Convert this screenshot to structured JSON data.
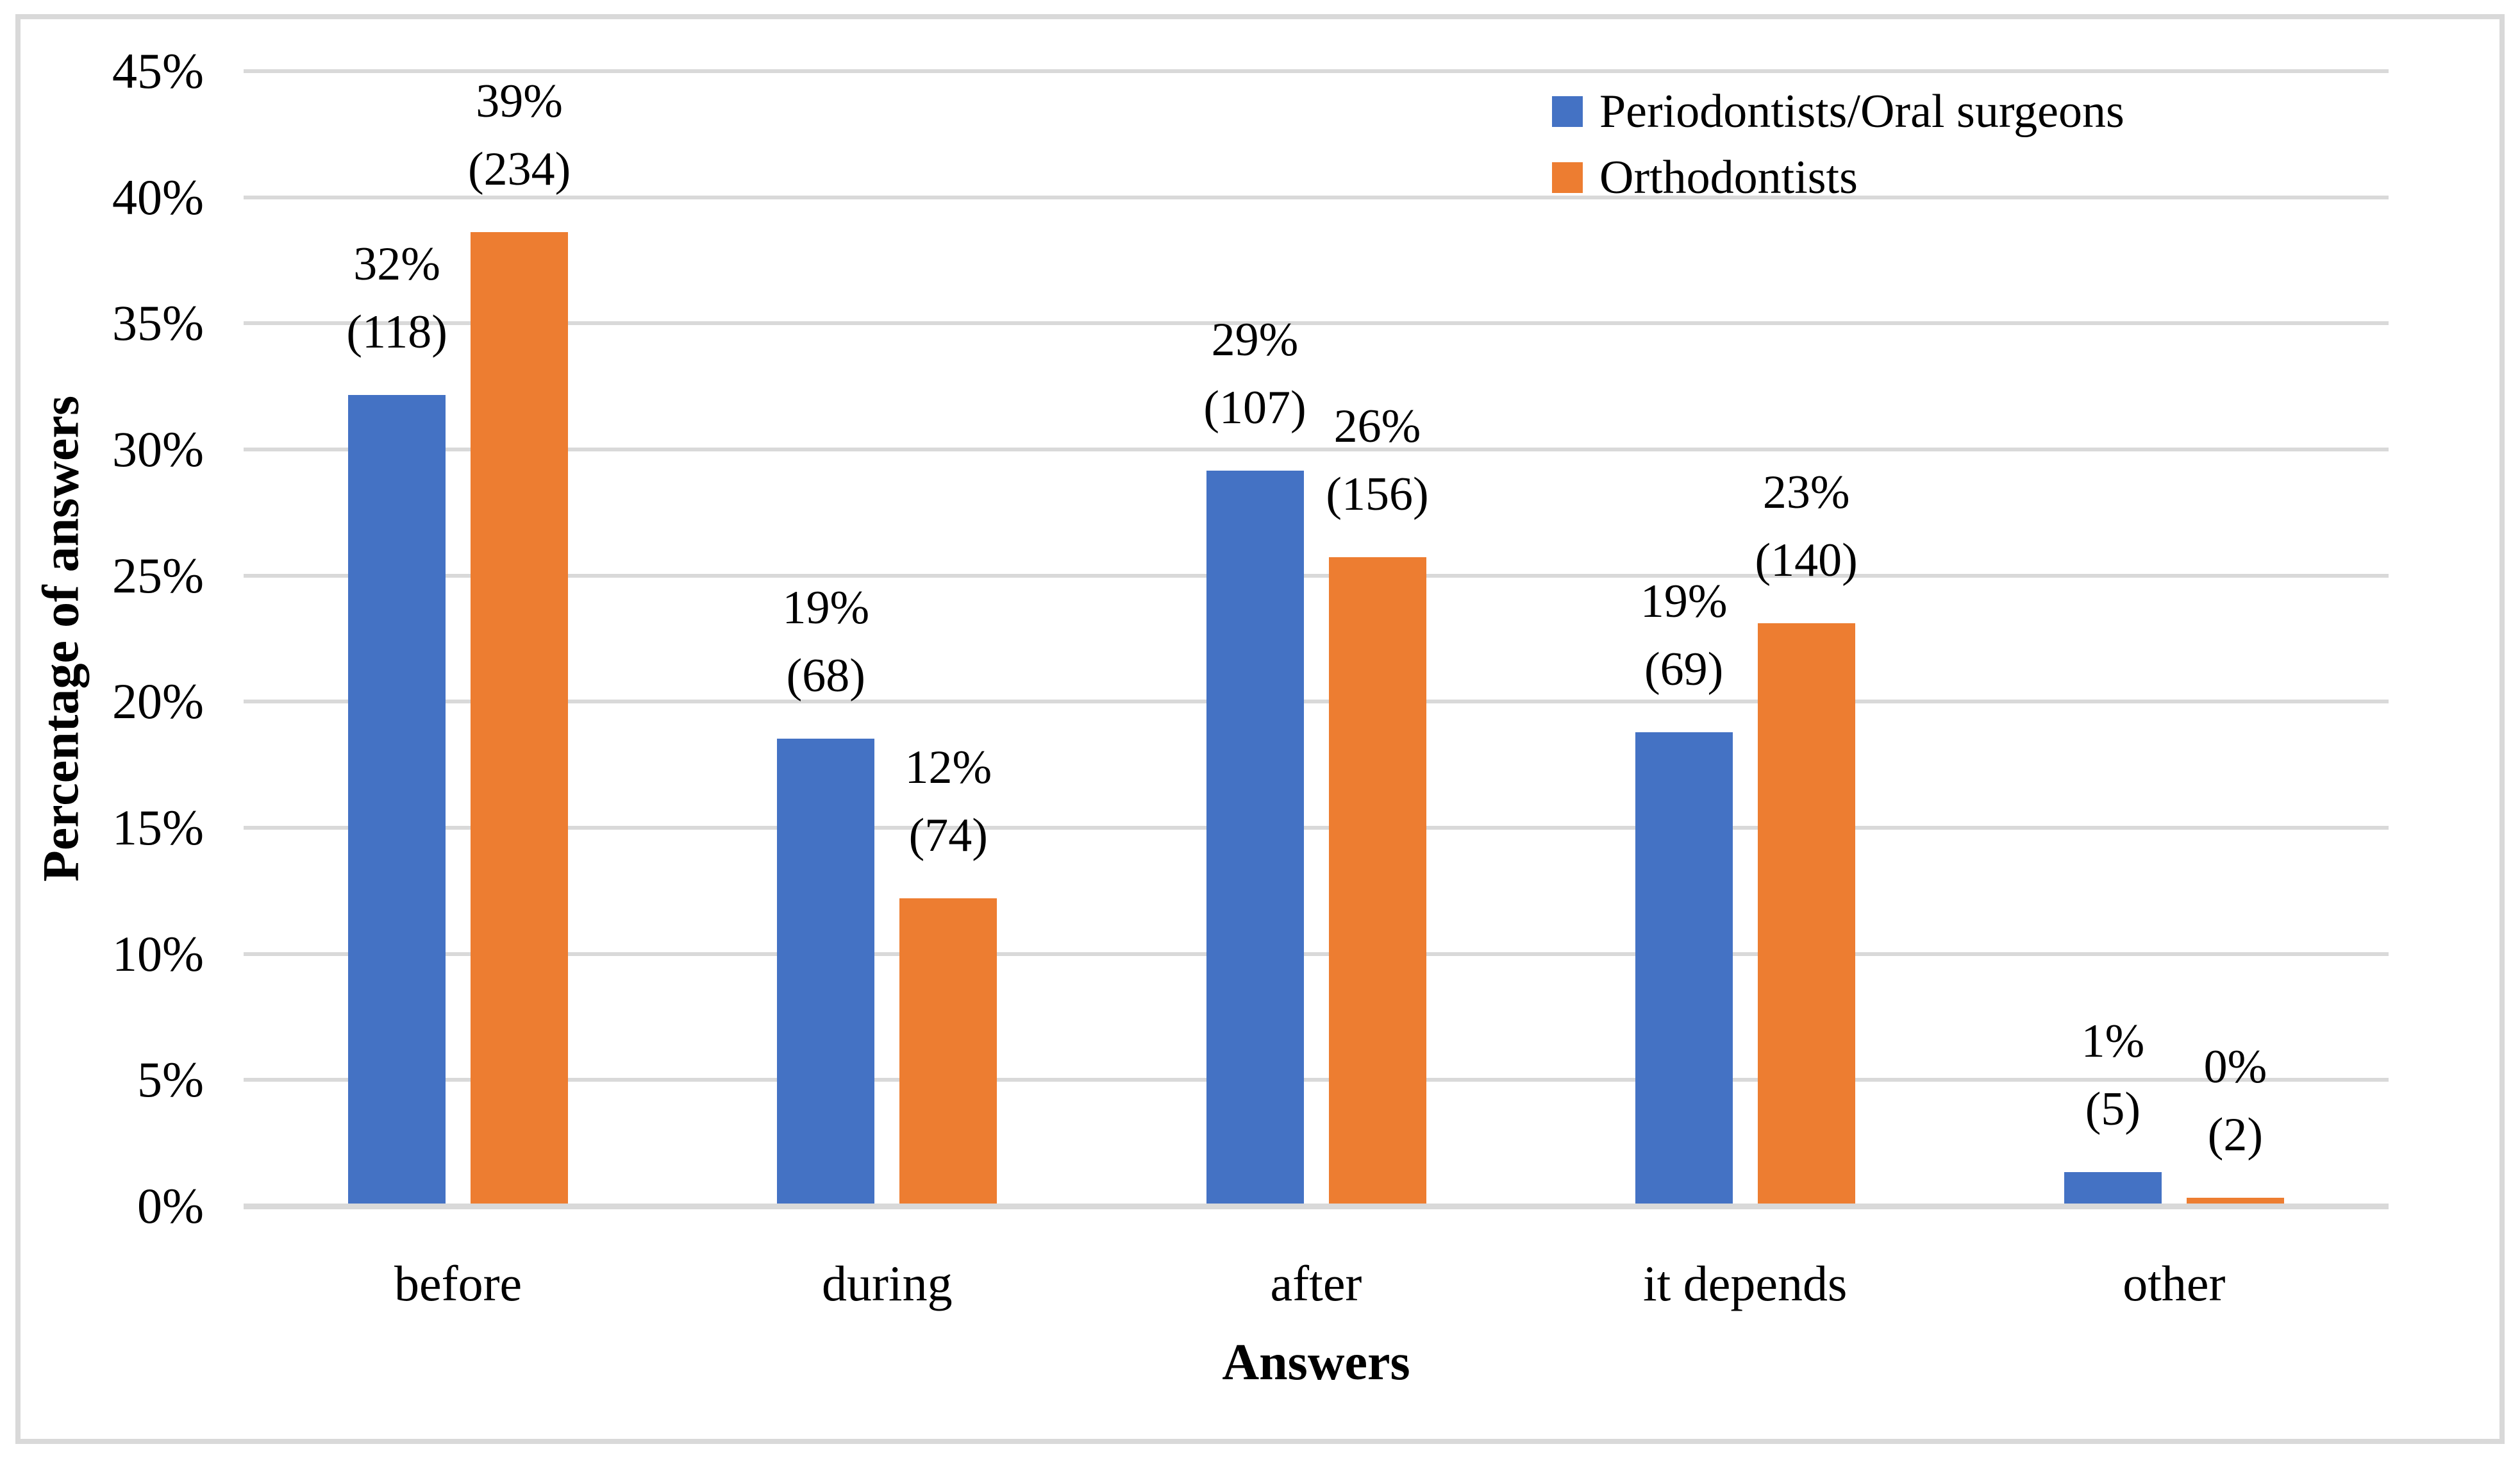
{
  "figure": {
    "background": "#FFFFFF",
    "frame_border_color": "#D9D9D9"
  },
  "chart_data": {
    "type": "bar",
    "title": "",
    "categories": [
      "before",
      "during",
      "after",
      "it depends",
      "other"
    ],
    "series": [
      {
        "name": "Periodontists/Oral surgeons",
        "color": "#4472C4",
        "values": [
          32.15,
          18.53,
          29.16,
          18.8,
          1.36
        ],
        "counts": [
          118,
          68,
          107,
          69,
          5
        ],
        "data_labels": [
          [
            "32%",
            "(118)"
          ],
          [
            "19%",
            "(68)"
          ],
          [
            "29%",
            "(107)"
          ],
          [
            "19%",
            "(69)"
          ],
          [
            "1%",
            "(5)"
          ]
        ]
      },
      {
        "name": "Orthodontists",
        "color": "#ED7D31",
        "values": [
          38.61,
          12.21,
          25.74,
          23.1,
          0.33
        ],
        "counts": [
          234,
          74,
          156,
          140,
          2
        ],
        "data_labels": [
          [
            "39%",
            "(234)"
          ],
          [
            "12%",
            "(74)"
          ],
          [
            "26%",
            "(156)"
          ],
          [
            "23%",
            "(140)"
          ],
          [
            "0%",
            "(2)"
          ]
        ]
      }
    ],
    "xlabel": "Answers",
    "ylabel": "Percentage of answers",
    "ylim": [
      0,
      45
    ],
    "ytick_values": [
      45,
      40,
      35,
      30,
      25,
      20,
      15,
      10,
      5,
      0
    ],
    "ytick_labels": [
      "45%",
      "40%",
      "35%",
      "30%",
      "25%",
      "20%",
      "15%",
      "10%",
      "5%",
      "0%"
    ],
    "grid": true,
    "gridline_color": "#D9D9D9",
    "legend_position": "top-right"
  }
}
